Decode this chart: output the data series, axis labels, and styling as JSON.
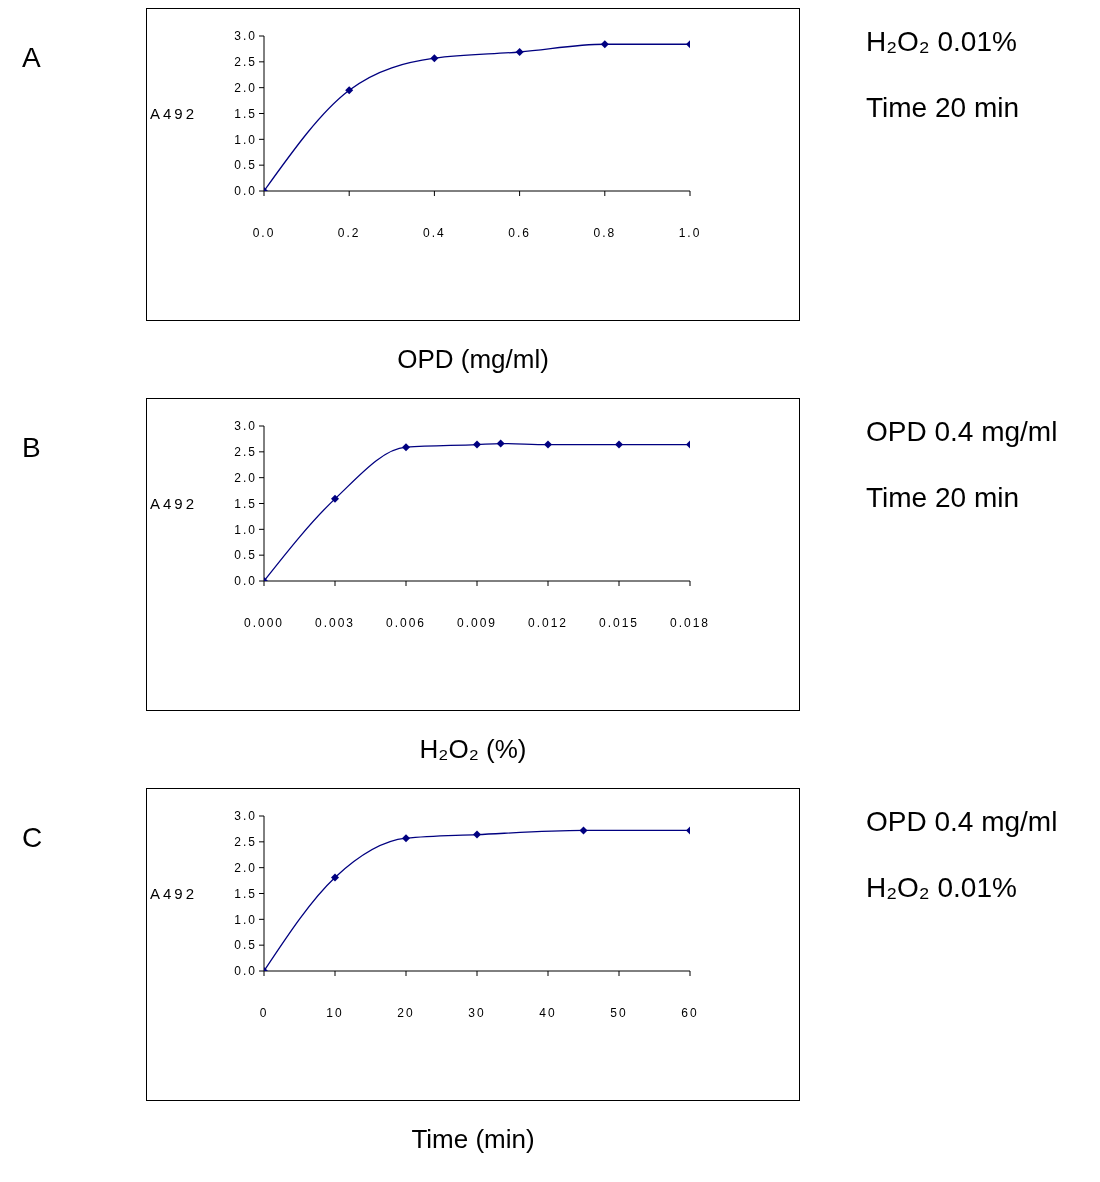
{
  "chart_data": [
    {
      "type": "line",
      "xlabel": "OPD (mg/ml)",
      "ylabel": "A492",
      "x": [
        0,
        0.2,
        0.4,
        0.6,
        0.8,
        1.0
      ],
      "values": [
        0,
        1.95,
        2.57,
        2.69,
        2.84,
        2.84
      ],
      "color": "#000080",
      "marker": "diamond",
      "xlim": [
        0,
        1.0
      ],
      "xticks": [
        {
          "value": 0,
          "label": "0.0"
        },
        {
          "value": 0.2,
          "label": "0.2"
        },
        {
          "value": 0.4,
          "label": "0.4"
        },
        {
          "value": 0.6,
          "label": "0.6"
        },
        {
          "value": 0.8,
          "label": "0.8"
        },
        {
          "value": 1.0,
          "label": "1.0"
        }
      ],
      "ylim": [
        0,
        3.0
      ],
      "yticks": [
        {
          "value": 0,
          "label": "0.0"
        },
        {
          "value": 0.5,
          "label": "0.5"
        },
        {
          "value": 1.0,
          "label": "1.0"
        },
        {
          "value": 1.5,
          "label": "1.5"
        },
        {
          "value": 2.0,
          "label": "2.0"
        },
        {
          "value": 2.5,
          "label": "2.5"
        },
        {
          "value": 3.0,
          "label": "3.0"
        }
      ],
      "annotations": [
        "A",
        "H₂O₂ 0.01%",
        "Time 20 min"
      ]
    },
    {
      "type": "line",
      "xlabel": "H₂O₂ (%)",
      "ylabel": "A492",
      "x": [
        0,
        0.003,
        0.006,
        0.009,
        0.01,
        0.012,
        0.015,
        0.018
      ],
      "values": [
        0,
        1.59,
        2.59,
        2.64,
        2.66,
        2.64,
        2.64,
        2.64
      ],
      "color": "#000080",
      "marker": "diamond",
      "xlim": [
        0,
        0.018
      ],
      "xticks": [
        {
          "value": 0,
          "label": "0.000"
        },
        {
          "value": 0.003,
          "label": "0.003"
        },
        {
          "value": 0.006,
          "label": "0.006"
        },
        {
          "value": 0.009,
          "label": "0.009"
        },
        {
          "value": 0.012,
          "label": "0.012"
        },
        {
          "value": 0.015,
          "label": "0.015"
        },
        {
          "value": 0.018,
          "label": "0.018"
        }
      ],
      "ylim": [
        0,
        3.0
      ],
      "yticks": [
        {
          "value": 0,
          "label": "0.0"
        },
        {
          "value": 0.5,
          "label": "0.5"
        },
        {
          "value": 1.0,
          "label": "1.0"
        },
        {
          "value": 1.5,
          "label": "1.5"
        },
        {
          "value": 2.0,
          "label": "2.0"
        },
        {
          "value": 2.5,
          "label": "2.5"
        },
        {
          "value": 3.0,
          "label": "3.0"
        }
      ],
      "annotations": [
        "B",
        "OPD 0.4 mg/ml",
        "Time 20 min"
      ]
    },
    {
      "type": "line",
      "xlabel": "Time (min)",
      "ylabel": "A492",
      "x": [
        0,
        10,
        20,
        30,
        45,
        60
      ],
      "values": [
        0,
        1.81,
        2.57,
        2.64,
        2.72,
        2.72
      ],
      "color": "#000080",
      "marker": "diamond",
      "xlim": [
        0,
        60
      ],
      "xticks": [
        0,
        10,
        20,
        30,
        40,
        50,
        60
      ],
      "ylim": [
        0,
        3.0
      ],
      "yticks": [
        {
          "value": 0,
          "label": "0.0"
        },
        {
          "value": 0.5,
          "label": "0.5"
        },
        {
          "value": 1.0,
          "label": "1.0"
        },
        {
          "value": 1.5,
          "label": "1.5"
        },
        {
          "value": 2.0,
          "label": "2.0"
        },
        {
          "value": 2.5,
          "label": "2.5"
        },
        {
          "value": 3.0,
          "label": "3.0"
        }
      ],
      "annotations": [
        "C",
        "OPD 0.4 mg/ml",
        "H₂O₂ 0.01%"
      ]
    }
  ]
}
